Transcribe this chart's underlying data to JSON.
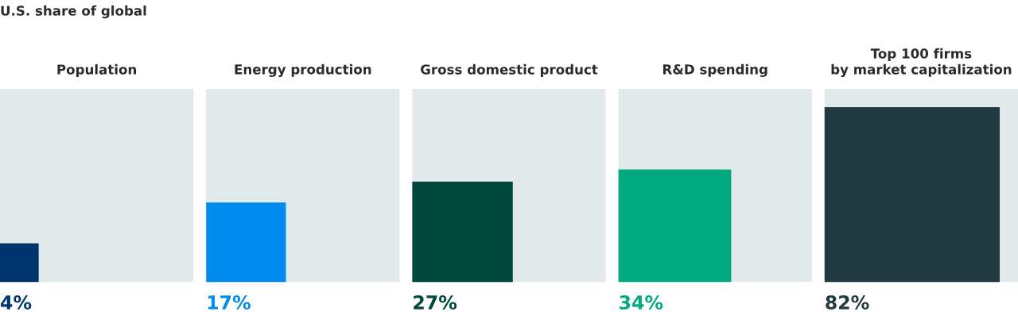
{
  "chart_data": {
    "type": "other",
    "title": "U.S. share of global",
    "categories": [
      "Population",
      "Energy production",
      "Gross domestic product",
      "R&D spending",
      "Top 100 firms\nby market capitalization"
    ],
    "values": [
      4,
      17,
      27,
      34,
      82
    ],
    "value_labels": [
      "4%",
      "17%",
      "27%",
      "34%",
      "82%"
    ],
    "colors": [
      "#00346f",
      "#008bee",
      "#00473c",
      "#00a97f",
      "#213a42"
    ]
  }
}
